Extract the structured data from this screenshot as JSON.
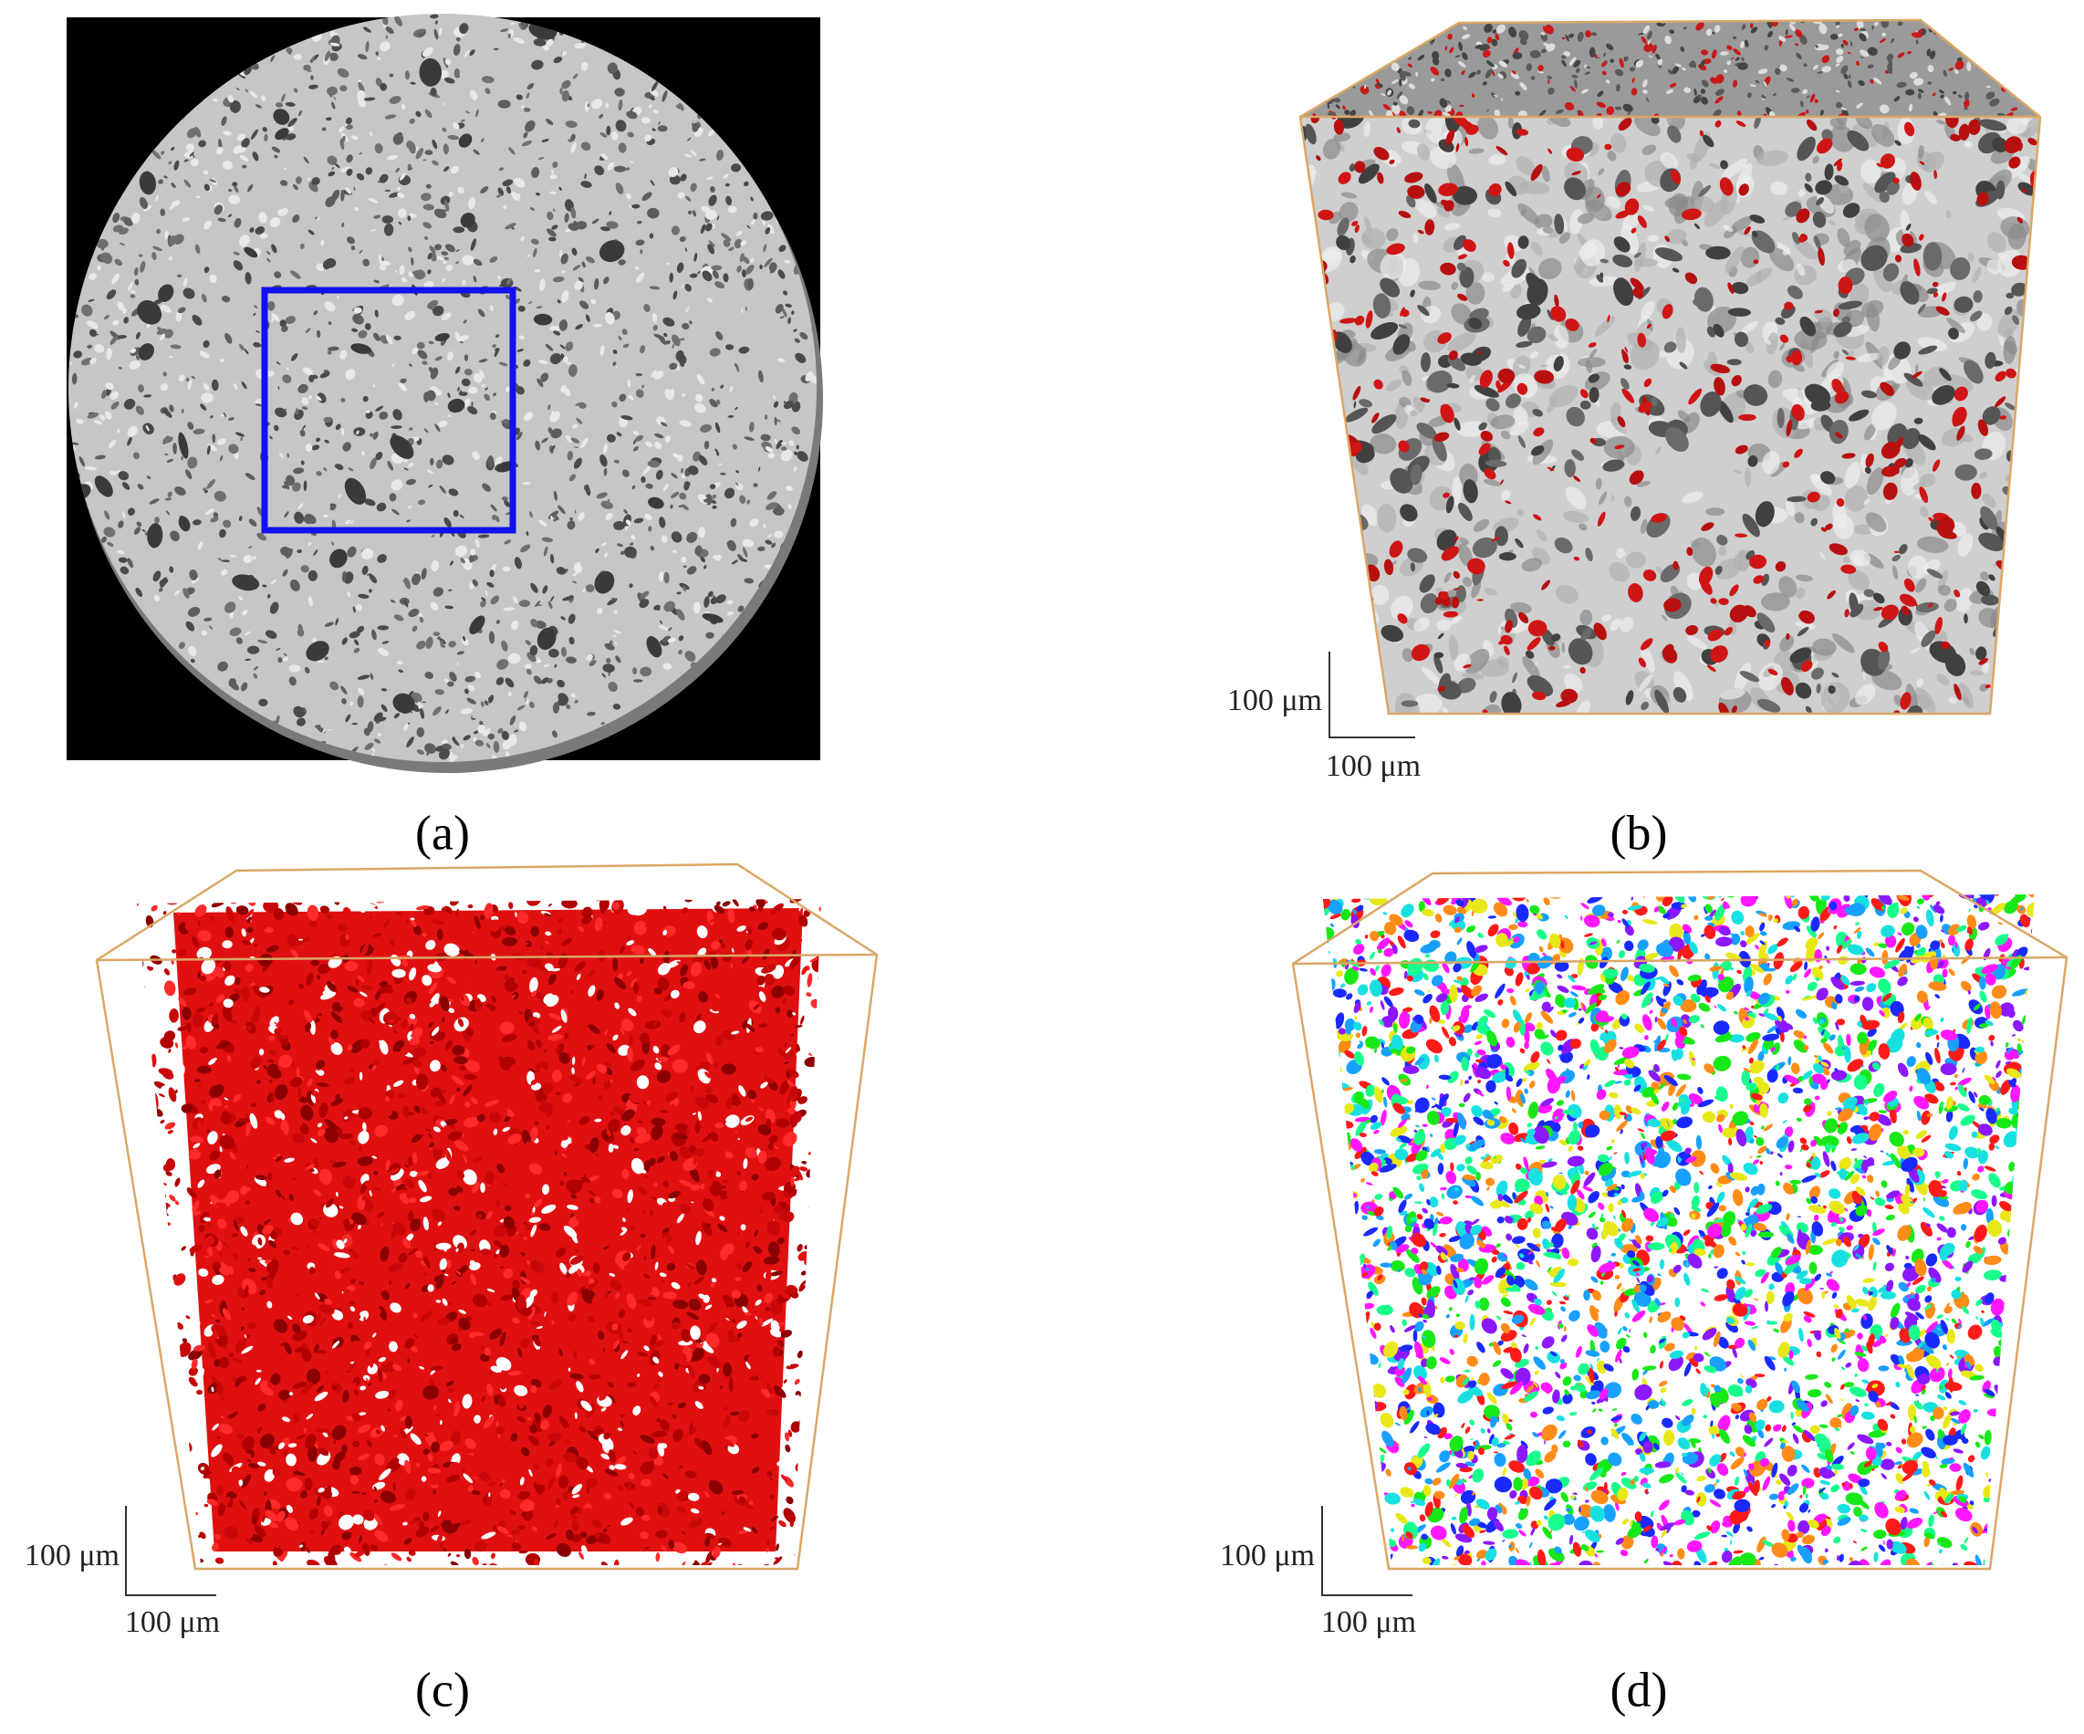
{
  "panels": [
    {
      "label": "(a)"
    },
    {
      "label": "(b)",
      "scale_bar": {
        "vertical": "100 μm",
        "horizontal": "100 μm"
      }
    },
    {
      "label": "(c)",
      "scale_bar": {
        "vertical": "100 μm",
        "horizontal": "100 μm"
      }
    },
    {
      "label": "(d)",
      "scale_bar": {
        "vertical": "100 μm",
        "horizontal": "100 μm"
      }
    }
  ]
}
